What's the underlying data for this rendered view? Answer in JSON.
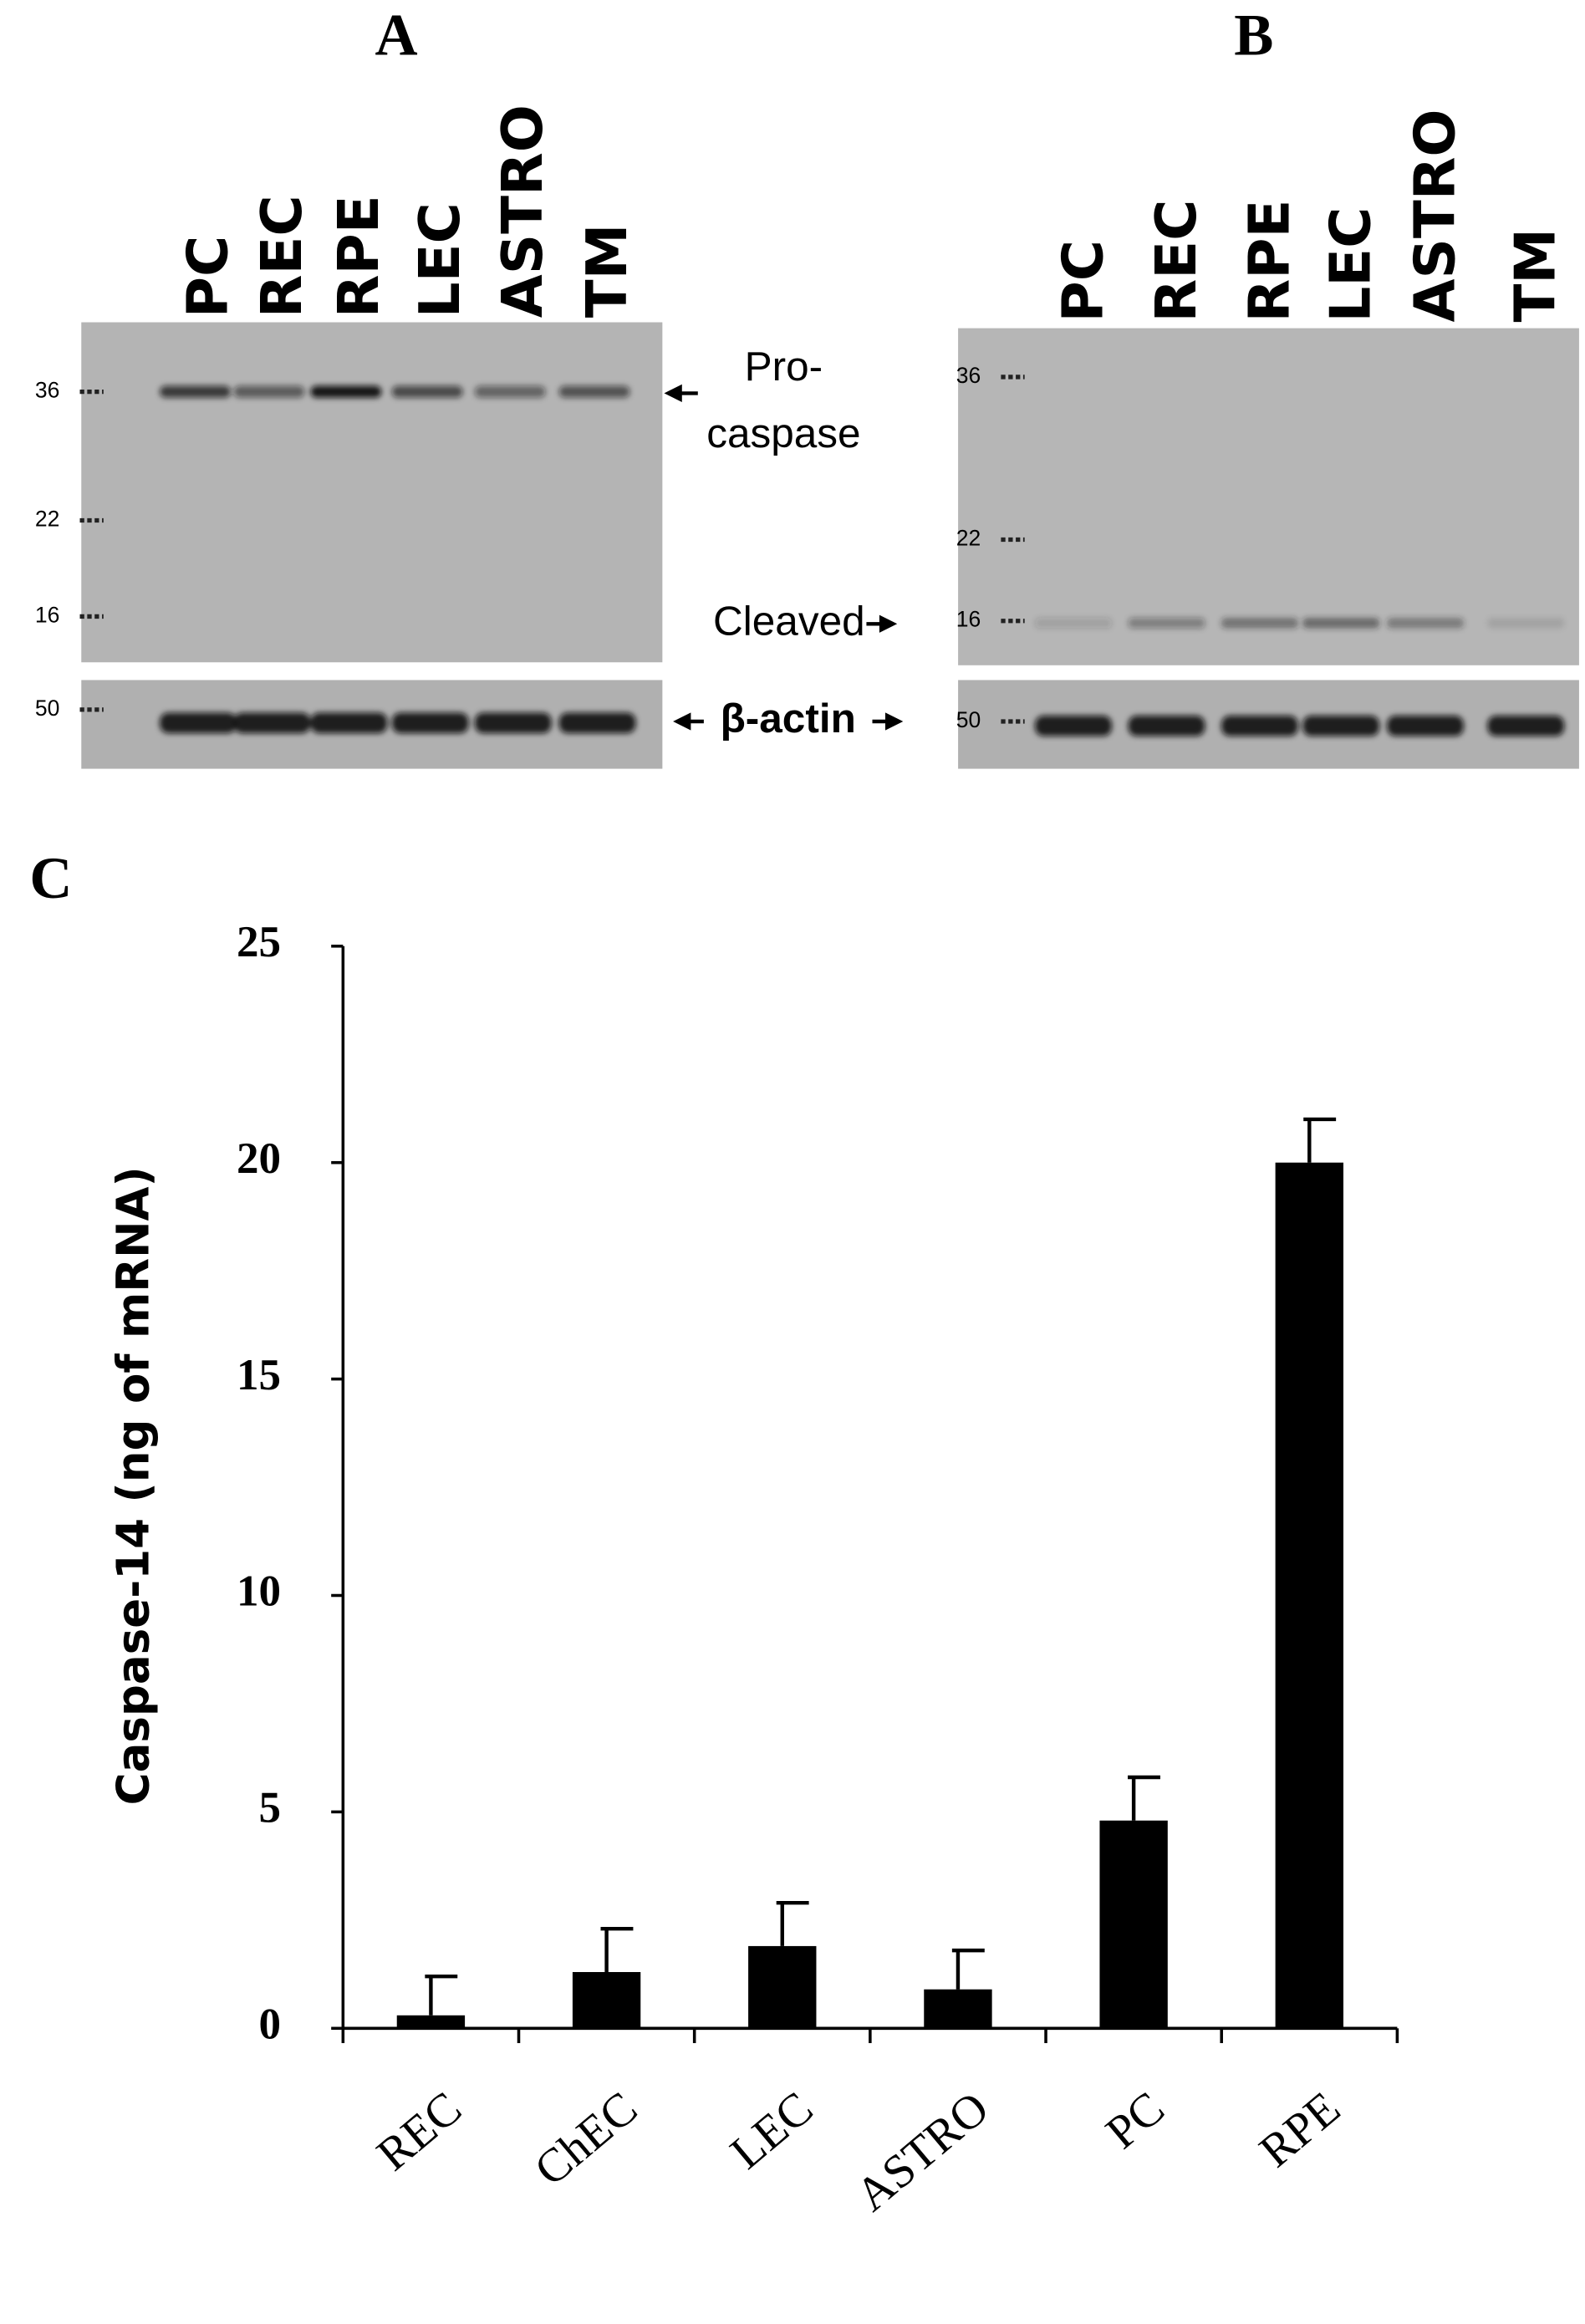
{
  "blots": {
    "panels": [
      {
        "label": "A",
        "lanes": [
          "PC",
          "REC",
          "RPE",
          "LEC",
          "ASTRO",
          "TM"
        ],
        "markers": [
          "36",
          "22",
          "16",
          "50"
        ]
      },
      {
        "label": "B",
        "lanes": [
          "PC",
          "REC",
          "RPE",
          "LEC",
          "ASTRO",
          "TM"
        ],
        "markers": [
          "36",
          "22",
          "16",
          "50"
        ]
      }
    ],
    "annotations": {
      "pro": "Pro-",
      "caspase": "caspase",
      "cleaved": "Cleaved",
      "actin": "β-actin"
    }
  },
  "chart_data": {
    "type": "bar",
    "panel_label": "C",
    "y_label": "Caspase-14 (ng of mRNA)",
    "categories": [
      "REC",
      "ChEC",
      "LEC",
      "ASTRO",
      "PC",
      "RPE"
    ],
    "values": [
      0.3,
      1.3,
      1.9,
      0.9,
      4.8,
      20
    ],
    "errors": [
      0.9,
      1.0,
      1.0,
      0.9,
      1.0,
      1.0
    ],
    "color": "#000000",
    "ylim": [
      0,
      25
    ],
    "yticks": [
      0,
      5,
      10,
      15,
      20,
      25
    ]
  }
}
